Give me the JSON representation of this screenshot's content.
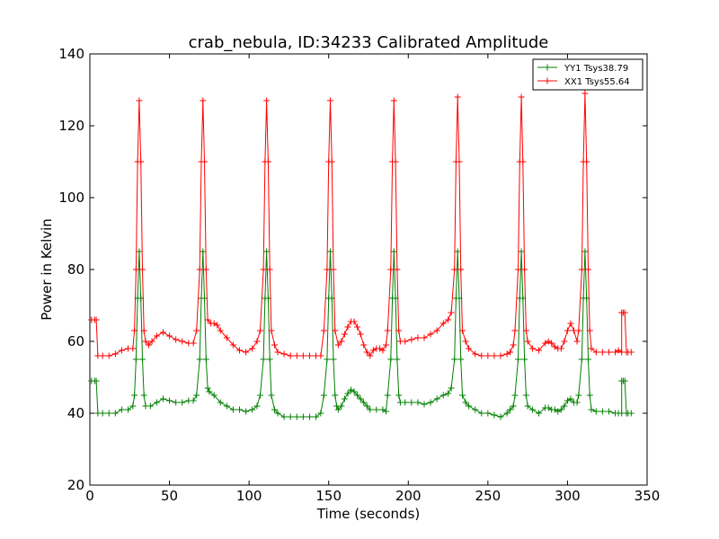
{
  "chart_data": {
    "type": "line",
    "title": "crab_nebula, ID:34233 Calibrated Amplitude",
    "xlabel": "Time (seconds)",
    "ylabel": "Power in Kelvin",
    "xlim": [
      0,
      350
    ],
    "ylim": [
      20,
      140
    ],
    "x_ticks": [
      0,
      50,
      100,
      150,
      200,
      250,
      300,
      350
    ],
    "y_ticks": [
      20,
      40,
      60,
      80,
      100,
      120,
      140
    ],
    "grid": false,
    "legend_position": "top-right",
    "marker": "plus",
    "series": [
      {
        "name": "YY1 Tsys38.79",
        "color": "#008000",
        "points": [
          [
            1,
            49
          ],
          [
            3,
            49
          ],
          [
            4,
            49
          ],
          [
            5,
            40
          ],
          [
            8,
            40
          ],
          [
            12,
            40
          ],
          [
            16,
            40
          ],
          [
            20,
            41
          ],
          [
            24,
            41
          ],
          [
            27,
            42
          ],
          [
            28,
            45
          ],
          [
            29,
            55
          ],
          [
            30,
            72
          ],
          [
            31,
            85
          ],
          [
            32,
            72
          ],
          [
            33,
            55
          ],
          [
            34,
            45
          ],
          [
            35,
            42
          ],
          [
            38,
            42
          ],
          [
            42,
            43
          ],
          [
            46,
            44
          ],
          [
            50,
            43.5
          ],
          [
            54,
            43
          ],
          [
            58,
            43
          ],
          [
            62,
            43.5
          ],
          [
            65,
            43.5
          ],
          [
            67,
            45
          ],
          [
            69,
            55
          ],
          [
            70,
            72
          ],
          [
            71,
            85
          ],
          [
            72,
            72
          ],
          [
            73,
            55
          ],
          [
            74,
            47
          ],
          [
            75,
            46
          ],
          [
            78,
            45
          ],
          [
            82,
            43
          ],
          [
            86,
            42
          ],
          [
            90,
            41
          ],
          [
            94,
            41
          ],
          [
            98,
            40.5
          ],
          [
            102,
            41
          ],
          [
            105,
            42
          ],
          [
            107,
            45
          ],
          [
            109,
            55
          ],
          [
            110,
            72
          ],
          [
            111,
            85
          ],
          [
            112,
            72
          ],
          [
            113,
            55
          ],
          [
            114,
            45
          ],
          [
            116,
            41
          ],
          [
            118,
            40
          ],
          [
            122,
            39
          ],
          [
            126,
            39
          ],
          [
            130,
            39
          ],
          [
            134,
            39
          ],
          [
            138,
            39
          ],
          [
            142,
            39
          ],
          [
            145,
            40
          ],
          [
            147,
            45
          ],
          [
            149,
            55
          ],
          [
            150,
            72
          ],
          [
            151,
            85
          ],
          [
            152,
            72
          ],
          [
            153,
            55
          ],
          [
            154,
            45
          ],
          [
            155,
            42
          ],
          [
            156,
            41
          ],
          [
            158,
            42
          ],
          [
            160,
            44
          ],
          [
            162,
            45.5
          ],
          [
            164,
            46.5
          ],
          [
            166,
            46
          ],
          [
            168,
            45
          ],
          [
            170,
            44
          ],
          [
            172,
            43
          ],
          [
            174,
            42
          ],
          [
            176,
            41
          ],
          [
            180,
            41
          ],
          [
            184,
            41
          ],
          [
            186,
            40.5
          ],
          [
            187,
            45
          ],
          [
            189,
            55
          ],
          [
            190,
            72
          ],
          [
            191,
            85
          ],
          [
            192,
            72
          ],
          [
            193,
            55
          ],
          [
            194,
            45
          ],
          [
            195,
            43
          ],
          [
            198,
            43
          ],
          [
            202,
            43
          ],
          [
            206,
            43
          ],
          [
            210,
            42.5
          ],
          [
            214,
            43
          ],
          [
            218,
            44
          ],
          [
            222,
            45
          ],
          [
            225,
            45.5
          ],
          [
            227,
            47
          ],
          [
            229,
            55
          ],
          [
            230,
            72
          ],
          [
            231,
            85
          ],
          [
            232,
            72
          ],
          [
            233,
            55
          ],
          [
            234,
            45
          ],
          [
            236,
            43
          ],
          [
            238,
            42
          ],
          [
            242,
            41
          ],
          [
            246,
            40
          ],
          [
            250,
            40
          ],
          [
            254,
            39.5
          ],
          [
            258,
            39
          ],
          [
            262,
            40
          ],
          [
            264,
            41
          ],
          [
            266,
            42
          ],
          [
            267,
            45
          ],
          [
            269,
            55
          ],
          [
            270,
            72
          ],
          [
            271,
            85
          ],
          [
            272,
            72
          ],
          [
            273,
            55
          ],
          [
            274,
            45
          ],
          [
            275,
            42
          ],
          [
            278,
            41
          ],
          [
            282,
            40
          ],
          [
            286,
            41.5
          ],
          [
            288,
            41.5
          ],
          [
            290,
            41
          ],
          [
            292,
            41
          ],
          [
            294,
            40.5
          ],
          [
            296,
            41
          ],
          [
            298,
            42
          ],
          [
            300,
            43.5
          ],
          [
            302,
            44
          ],
          [
            304,
            43
          ],
          [
            306,
            43
          ],
          [
            307,
            45
          ],
          [
            309,
            55
          ],
          [
            310,
            72
          ],
          [
            311,
            85
          ],
          [
            312,
            72
          ],
          [
            313,
            55
          ],
          [
            314,
            45
          ],
          [
            315,
            41
          ],
          [
            318,
            40.5
          ],
          [
            322,
            40.5
          ],
          [
            326,
            40.5
          ],
          [
            330,
            40
          ],
          [
            332,
            40
          ],
          [
            334,
            40
          ],
          [
            334,
            49
          ],
          [
            335,
            49
          ],
          [
            336,
            49
          ],
          [
            337,
            40
          ],
          [
            338,
            40
          ],
          [
            340,
            40
          ]
        ]
      },
      {
        "name": "XX1 Tsys55.64",
        "color": "#ff0000",
        "points": [
          [
            1,
            66
          ],
          [
            3,
            66
          ],
          [
            4,
            66
          ],
          [
            5,
            56
          ],
          [
            8,
            56
          ],
          [
            12,
            56
          ],
          [
            16,
            56.5
          ],
          [
            20,
            57.5
          ],
          [
            24,
            58
          ],
          [
            27,
            58
          ],
          [
            28,
            63
          ],
          [
            29,
            80
          ],
          [
            30,
            110
          ],
          [
            31,
            127
          ],
          [
            32,
            110
          ],
          [
            33,
            80
          ],
          [
            34,
            63
          ],
          [
            35,
            60
          ],
          [
            37,
            59
          ],
          [
            39,
            60
          ],
          [
            42,
            61.5
          ],
          [
            46,
            62.5
          ],
          [
            50,
            61.5
          ],
          [
            54,
            60.5
          ],
          [
            58,
            60
          ],
          [
            62,
            59.5
          ],
          [
            65,
            59.5
          ],
          [
            67,
            63
          ],
          [
            69,
            80
          ],
          [
            70,
            110
          ],
          [
            71,
            127
          ],
          [
            72,
            110
          ],
          [
            73,
            80
          ],
          [
            74,
            66
          ],
          [
            76,
            65
          ],
          [
            78,
            65
          ],
          [
            80,
            64.5
          ],
          [
            82,
            63
          ],
          [
            86,
            61
          ],
          [
            90,
            59
          ],
          [
            94,
            57.5
          ],
          [
            98,
            57
          ],
          [
            102,
            58
          ],
          [
            105,
            60
          ],
          [
            107,
            63
          ],
          [
            109,
            80
          ],
          [
            110,
            110
          ],
          [
            111,
            127
          ],
          [
            112,
            110
          ],
          [
            113,
            80
          ],
          [
            114,
            63
          ],
          [
            116,
            59
          ],
          [
            118,
            57
          ],
          [
            122,
            56.5
          ],
          [
            126,
            56
          ],
          [
            130,
            56
          ],
          [
            134,
            56
          ],
          [
            138,
            56
          ],
          [
            142,
            56
          ],
          [
            145,
            56
          ],
          [
            147,
            63
          ],
          [
            149,
            80
          ],
          [
            150,
            110
          ],
          [
            151,
            127
          ],
          [
            152,
            110
          ],
          [
            153,
            80
          ],
          [
            154,
            63
          ],
          [
            156,
            59
          ],
          [
            158,
            60
          ],
          [
            160,
            62
          ],
          [
            162,
            64
          ],
          [
            164,
            65.5
          ],
          [
            166,
            65.5
          ],
          [
            168,
            64
          ],
          [
            170,
            62
          ],
          [
            172,
            59
          ],
          [
            174,
            57
          ],
          [
            176,
            56
          ],
          [
            178,
            57.5
          ],
          [
            180,
            58
          ],
          [
            182,
            58
          ],
          [
            184,
            57.5
          ],
          [
            186,
            59
          ],
          [
            187,
            63
          ],
          [
            189,
            80
          ],
          [
            190,
            110
          ],
          [
            191,
            127
          ],
          [
            192,
            110
          ],
          [
            193,
            80
          ],
          [
            194,
            63
          ],
          [
            195,
            60
          ],
          [
            198,
            60
          ],
          [
            202,
            60.5
          ],
          [
            206,
            61
          ],
          [
            210,
            61
          ],
          [
            214,
            62
          ],
          [
            218,
            63
          ],
          [
            222,
            65
          ],
          [
            225,
            66
          ],
          [
            227,
            68
          ],
          [
            229,
            80
          ],
          [
            230,
            110
          ],
          [
            231,
            128
          ],
          [
            232,
            110
          ],
          [
            233,
            80
          ],
          [
            234,
            63
          ],
          [
            236,
            60
          ],
          [
            238,
            58
          ],
          [
            242,
            56.5
          ],
          [
            246,
            56
          ],
          [
            250,
            56
          ],
          [
            254,
            56
          ],
          [
            258,
            56
          ],
          [
            262,
            56.5
          ],
          [
            264,
            57
          ],
          [
            266,
            59
          ],
          [
            267,
            63
          ],
          [
            269,
            80
          ],
          [
            270,
            110
          ],
          [
            271,
            128
          ],
          [
            272,
            110
          ],
          [
            273,
            80
          ],
          [
            274,
            63
          ],
          [
            275,
            60
          ],
          [
            278,
            58
          ],
          [
            282,
            57.5
          ],
          [
            286,
            59.5
          ],
          [
            288,
            60
          ],
          [
            290,
            59.5
          ],
          [
            292,
            58.5
          ],
          [
            294,
            58
          ],
          [
            296,
            58
          ],
          [
            298,
            60
          ],
          [
            300,
            63
          ],
          [
            302,
            65
          ],
          [
            304,
            63
          ],
          [
            306,
            60
          ],
          [
            307,
            63
          ],
          [
            309,
            80
          ],
          [
            310,
            110
          ],
          [
            311,
            129
          ],
          [
            312,
            110
          ],
          [
            313,
            80
          ],
          [
            314,
            63
          ],
          [
            315,
            58
          ],
          [
            318,
            57
          ],
          [
            322,
            57
          ],
          [
            326,
            57
          ],
          [
            330,
            57
          ],
          [
            332,
            57.5
          ],
          [
            334,
            57
          ],
          [
            334,
            68
          ],
          [
            335,
            68
          ],
          [
            336,
            68
          ],
          [
            337,
            57
          ],
          [
            338,
            57
          ],
          [
            340,
            57
          ]
        ]
      }
    ]
  }
}
